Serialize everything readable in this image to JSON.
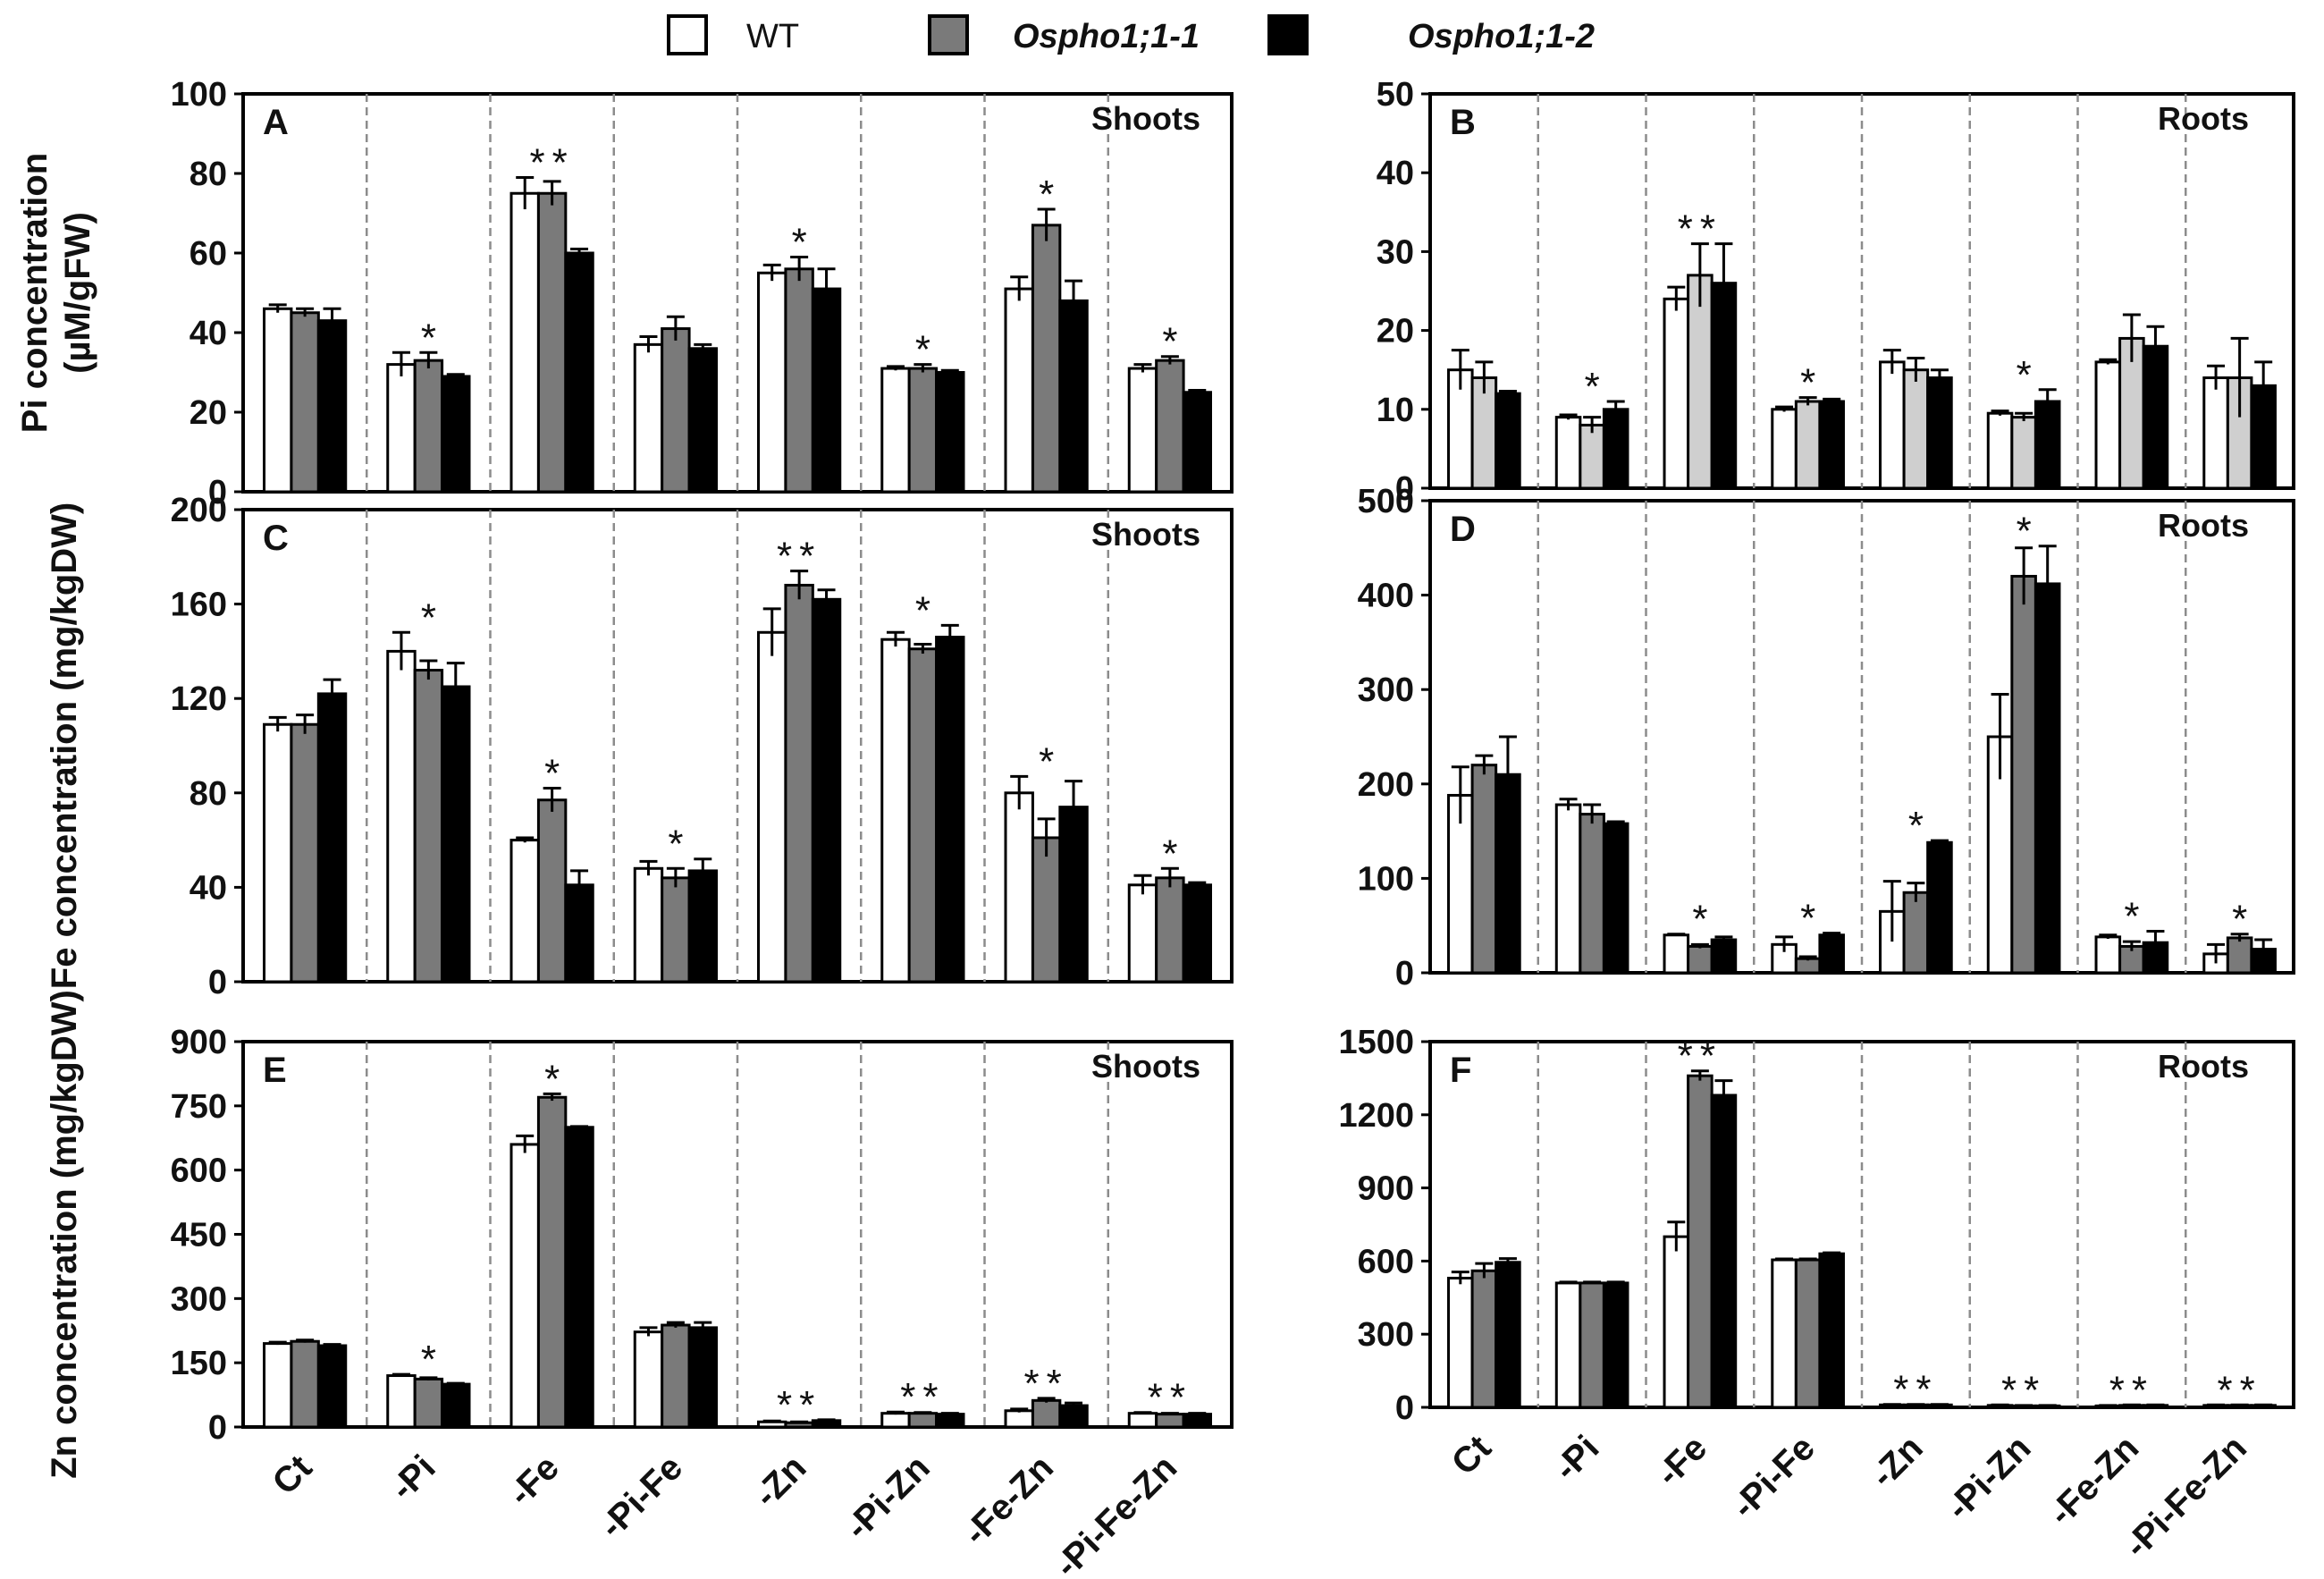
{
  "legend": [
    {
      "label": "WT",
      "color": "#ffffff"
    },
    {
      "label": "Ospho1;1-1",
      "color": "#7a7a7a"
    },
    {
      "label": "Ospho1;1-2",
      "color": "#000000"
    }
  ],
  "categories": [
    "Ct",
    "-Pi",
    "-Fe",
    "-Pi-Fe",
    "-Zn",
    "-Pi-Zn",
    "-Fe-Zn",
    "-Pi-Fe-Zn"
  ],
  "chart_data": [
    {
      "id": "A",
      "type": "bar",
      "tag": "Shoots",
      "ylabel": [
        "Pi concentration",
        "(µM/gFW)"
      ],
      "ylim": [
        0,
        100
      ],
      "yticks": [
        0,
        20,
        40,
        60,
        80,
        100
      ],
      "categories": [
        "Ct",
        "-Pi",
        "-Fe",
        "-Pi-Fe",
        "-Zn",
        "-Pi-Zn",
        "-Fe-Zn",
        "-Pi-Fe-Zn"
      ],
      "series": [
        {
          "name": "WT",
          "values": [
            46,
            32,
            75,
            37,
            55,
            31,
            51,
            31
          ],
          "errors": [
            1,
            3,
            4,
            2,
            2,
            0.5,
            3,
            1
          ]
        },
        {
          "name": "Ospho1;1-1",
          "values": [
            45,
            33,
            75,
            41,
            56,
            31,
            67,
            33
          ],
          "errors": [
            1,
            2,
            3,
            3,
            3,
            1,
            4,
            1
          ]
        },
        {
          "name": "Ospho1;1-2",
          "values": [
            43,
            29,
            60,
            36,
            51,
            30,
            48,
            25
          ],
          "errors": [
            3,
            0.5,
            1,
            1,
            5,
            0.5,
            5,
            0.5
          ]
        }
      ],
      "significance": [
        "",
        "*",
        "**",
        "",
        "*",
        "*",
        "*",
        "*"
      ]
    },
    {
      "id": "B",
      "type": "bar",
      "tag": "Roots",
      "ylabel": [],
      "ylim": [
        0,
        50
      ],
      "yticks": [
        0,
        10,
        20,
        30,
        40,
        50
      ],
      "categories": [
        "Ct",
        "-Pi",
        "-Fe",
        "-Pi-Fe",
        "-Zn",
        "-Pi-Zn",
        "-Fe-Zn",
        "-Pi-Fe-Zn"
      ],
      "series": [
        {
          "name": "WT",
          "values": [
            15,
            9,
            24,
            10,
            16,
            9.5,
            16,
            14
          ],
          "errors": [
            2.5,
            0.3,
            1.5,
            0.3,
            1.5,
            0.3,
            0.3,
            1.5
          ]
        },
        {
          "name": "Ospho1;1-1",
          "values": [
            14,
            8,
            27,
            11,
            15,
            9,
            19,
            14
          ],
          "errors": [
            2,
            1,
            4,
            0.5,
            1.5,
            0.5,
            3,
            5
          ]
        },
        {
          "name": "Ospho1;1-2",
          "values": [
            12,
            10,
            26,
            11,
            14,
            11,
            18,
            13
          ],
          "errors": [
            0.3,
            1,
            5,
            0.3,
            1,
            1.5,
            2.5,
            3
          ]
        }
      ],
      "significance": [
        "",
        "*",
        "**",
        "*",
        "",
        "*",
        "",
        ""
      ]
    },
    {
      "id": "C",
      "type": "bar",
      "tag": "Shoots",
      "ylabel": [
        "Fe  concentration (mg/kgDW)"
      ],
      "ylim": [
        0,
        200
      ],
      "yticks": [
        0,
        40,
        80,
        120,
        160,
        200
      ],
      "categories": [
        "Ct",
        "-Pi",
        "-Fe",
        "-Pi-Fe",
        "-Zn",
        "-Pi-Zn",
        "-Fe-Zn",
        "-Pi-Fe-Zn"
      ],
      "series": [
        {
          "name": "WT",
          "values": [
            109,
            140,
            60,
            48,
            148,
            145,
            80,
            41
          ],
          "errors": [
            3,
            8,
            1,
            3,
            10,
            3,
            7,
            4
          ]
        },
        {
          "name": "Ospho1;1-1",
          "values": [
            109,
            132,
            77,
            44,
            168,
            141,
            61,
            44
          ],
          "errors": [
            4,
            4,
            5,
            4,
            6,
            2,
            8,
            4
          ]
        },
        {
          "name": "Ospho1;1-2",
          "values": [
            122,
            125,
            41,
            47,
            162,
            146,
            74,
            41
          ],
          "errors": [
            6,
            10,
            6,
            5,
            4,
            5,
            11,
            1
          ]
        }
      ],
      "significance": [
        "",
        "*",
        "*",
        "*",
        "**",
        "*",
        "*",
        "*"
      ]
    },
    {
      "id": "D",
      "type": "bar",
      "tag": "Roots",
      "ylabel": [],
      "ylim": [
        0,
        500
      ],
      "yticks": [
        0,
        100,
        200,
        300,
        400,
        500
      ],
      "categories": [
        "Ct",
        "-Pi",
        "-Fe",
        "-Pi-Fe",
        "-Zn",
        "-Pi-Zn",
        "-Fe-Zn",
        "-Pi-Fe-Zn"
      ],
      "series": [
        {
          "name": "WT",
          "values": [
            188,
            178,
            40,
            30,
            65,
            250,
            38,
            20
          ],
          "errors": [
            30,
            6,
            1,
            8,
            32,
            45,
            2,
            10
          ]
        },
        {
          "name": "Ospho1;1-1",
          "values": [
            220,
            168,
            28,
            15,
            85,
            420,
            28,
            37
          ],
          "errors": [
            10,
            10,
            2,
            2,
            10,
            30,
            5,
            4
          ]
        },
        {
          "name": "Ospho1;1-2",
          "values": [
            210,
            158,
            35,
            40,
            138,
            412,
            32,
            25
          ],
          "errors": [
            40,
            2,
            3,
            2,
            2,
            40,
            12,
            10
          ]
        }
      ],
      "significance": [
        "",
        "",
        "*",
        "*",
        "*",
        "*",
        "*",
        "*"
      ]
    },
    {
      "id": "E",
      "type": "bar",
      "tag": "Shoots",
      "ylabel": [
        "Zn concentration (mg/kgDW)"
      ],
      "ylim": [
        0,
        900
      ],
      "yticks": [
        0,
        150,
        300,
        450,
        600,
        750,
        900
      ],
      "categories": [
        "Ct",
        "-Pi",
        "-Fe",
        "-Pi-Fe",
        "-Zn",
        "-Pi-Zn",
        "-Fe-Zn",
        "-Pi-Fe-Zn"
      ],
      "series": [
        {
          "name": "WT",
          "values": [
            195,
            120,
            660,
            222,
            12,
            32,
            38,
            32
          ],
          "errors": [
            3,
            3,
            20,
            10,
            2,
            3,
            4,
            2
          ]
        },
        {
          "name": "Ospho1;1-1",
          "values": [
            200,
            112,
            770,
            238,
            10,
            32,
            62,
            30
          ],
          "errors": [
            3,
            3,
            8,
            6,
            2,
            2,
            5,
            2
          ]
        },
        {
          "name": "Ospho1;1-2",
          "values": [
            190,
            100,
            700,
            232,
            15,
            30,
            50,
            30
          ],
          "errors": [
            3,
            2,
            2,
            12,
            2,
            2,
            6,
            2
          ]
        }
      ],
      "significance": [
        "",
        "*",
        "*",
        "",
        "**",
        "**",
        "**",
        "**"
      ]
    },
    {
      "id": "F",
      "type": "bar",
      "tag": "Roots",
      "ylabel": [],
      "ylim": [
        0,
        1500
      ],
      "yticks": [
        0,
        300,
        600,
        900,
        1200,
        1500
      ],
      "categories": [
        "Ct",
        "-Pi",
        "-Fe",
        "-Pi-Fe",
        "-Zn",
        "-Pi-Zn",
        "-Fe-Zn",
        "-Pi-Fe-Zn"
      ],
      "series": [
        {
          "name": "WT",
          "values": [
            530,
            510,
            700,
            605,
            10,
            8,
            6,
            8
          ],
          "errors": [
            25,
            4,
            60,
            4,
            2,
            2,
            2,
            2
          ]
        },
        {
          "name": "Ospho1;1-1",
          "values": [
            560,
            510,
            1360,
            605,
            10,
            6,
            8,
            8
          ],
          "errors": [
            30,
            4,
            20,
            4,
            2,
            2,
            2,
            2
          ]
        },
        {
          "name": "Ospho1;1-2",
          "values": [
            595,
            510,
            1280,
            630,
            10,
            6,
            8,
            8
          ],
          "errors": [
            15,
            4,
            60,
            4,
            2,
            2,
            2,
            2
          ]
        }
      ],
      "significance": [
        "",
        "",
        "**",
        "",
        "**",
        "**",
        "**",
        "**"
      ]
    }
  ]
}
